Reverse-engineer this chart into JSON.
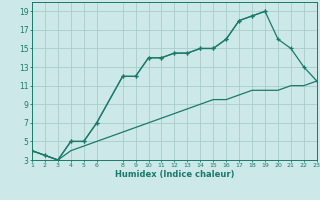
{
  "background_color": "#cce8e8",
  "grid_color": "#aacccc",
  "line_color": "#1a7a6a",
  "xlabel": "Humidex (Indice chaleur)",
  "xlim": [
    1,
    23
  ],
  "ylim": [
    3,
    20
  ],
  "xticks": [
    1,
    2,
    3,
    4,
    5,
    6,
    8,
    9,
    10,
    11,
    12,
    13,
    14,
    15,
    16,
    17,
    18,
    19,
    20,
    21,
    22,
    23
  ],
  "yticks": [
    3,
    5,
    7,
    9,
    11,
    13,
    15,
    17,
    19
  ],
  "line1_x": [
    1,
    2,
    3,
    4,
    5,
    6,
    8,
    9,
    10,
    11,
    12,
    13,
    14,
    15,
    16,
    17,
    18,
    19
  ],
  "line1_y": [
    4,
    3.5,
    3,
    5,
    5,
    7,
    12,
    12,
    14,
    14,
    14.5,
    14.5,
    15,
    15,
    16,
    18,
    18.5,
    19
  ],
  "line2_x": [
    1,
    2,
    3,
    4,
    5,
    6,
    8,
    9,
    10,
    11,
    12,
    13,
    14,
    15,
    16,
    17,
    18,
    19,
    20,
    21,
    22,
    23
  ],
  "line2_y": [
    4,
    3.5,
    3,
    5,
    5,
    7,
    12,
    12,
    14,
    14,
    14.5,
    14.5,
    15,
    15,
    16,
    18,
    18.5,
    19,
    16,
    15,
    13,
    11.5
  ],
  "line3_x": [
    1,
    2,
    3,
    4,
    5,
    6,
    8,
    9,
    10,
    11,
    12,
    13,
    14,
    15,
    16,
    17,
    18,
    19,
    20,
    21,
    22,
    23
  ],
  "line3_y": [
    4,
    3.5,
    3,
    4,
    4.5,
    5,
    6,
    6.5,
    7,
    7.5,
    8,
    8.5,
    9,
    9.5,
    9.5,
    10,
    10.5,
    10.5,
    10.5,
    11,
    11,
    11.5
  ]
}
